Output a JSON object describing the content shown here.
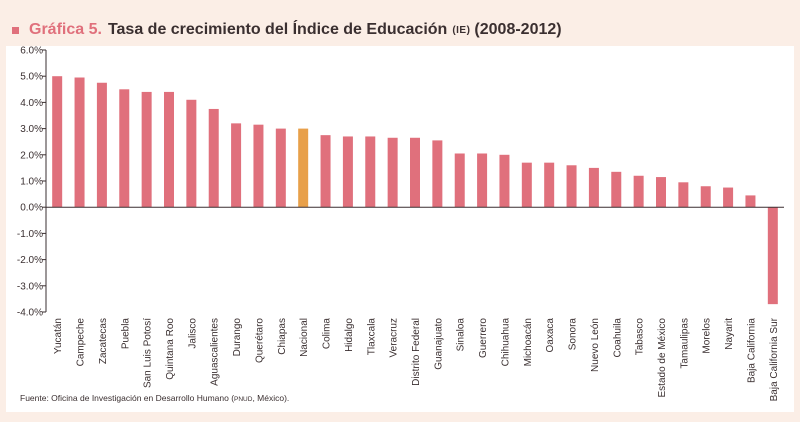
{
  "header": {
    "prefix": "Gráfica 5.",
    "title": "Tasa de crecimiento del Índice de Educación",
    "abbrev": "(IE)",
    "years": "(2008-2012)"
  },
  "footer": {
    "source_prefix": "Fuente: Oficina de Investigación en Desarrollo Humano (",
    "source_abbrev": "PNUD",
    "source_suffix": ", México)."
  },
  "colors": {
    "bar": "#e0707c",
    "highlight": "#e8a04a",
    "accent": "#e0707c",
    "axis": "#3a2f30",
    "background": "#fbeee6",
    "panel": "#ffffff"
  },
  "chart_data": {
    "type": "bar",
    "title": "Tasa de crecimiento del Índice de Educación (IE) (2008-2012)",
    "xlabel": "",
    "ylabel": "",
    "ylim": [
      -4.0,
      6.0
    ],
    "yticks": [
      "6.0%",
      "5.0%",
      "4.0%",
      "3.0%",
      "2.0%",
      "1.0%",
      "0.0%",
      "-1.0%",
      "-2.0%",
      "-3.0%",
      "-4.0%"
    ],
    "ytick_values": [
      6,
      5,
      4,
      3,
      2,
      1,
      0,
      -1,
      -2,
      -3,
      -4
    ],
    "grid": false,
    "legend": "none",
    "highlight_category": "Nacional",
    "categories": [
      "Yucatán",
      "Campeche",
      "Zacatecas",
      "Puebla",
      "San Luis Potosí",
      "Quintana Roo",
      "Jalisco",
      "Aguascalientes",
      "Durango",
      "Querétaro",
      "Chiapas",
      "Nacional",
      "Colima",
      "Hidalgo",
      "Tlaxcala",
      "Veracruz",
      "Distrito Federal",
      "Guanajuato",
      "Sinaloa",
      "Guerrero",
      "Chihuahua",
      "Michoacán",
      "Oaxaca",
      "Sonora",
      "Nuevo León",
      "Coahuila",
      "Tabasco",
      "Estado de México",
      "Tamaulipas",
      "Morelos",
      "Nayarit",
      "Baja California",
      "Baja California Sur"
    ],
    "values": [
      5.0,
      4.95,
      4.75,
      4.5,
      4.4,
      4.4,
      4.1,
      3.75,
      3.2,
      3.15,
      3.0,
      3.0,
      2.75,
      2.7,
      2.7,
      2.65,
      2.65,
      2.55,
      2.05,
      2.05,
      2.0,
      1.7,
      1.7,
      1.6,
      1.5,
      1.35,
      1.2,
      1.15,
      0.95,
      0.8,
      0.75,
      0.45,
      -3.7
    ]
  }
}
